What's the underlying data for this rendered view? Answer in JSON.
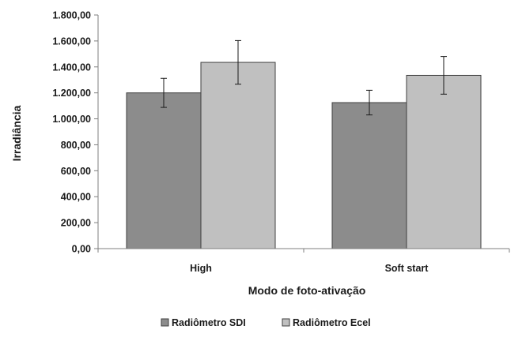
{
  "chart_data": {
    "type": "bar",
    "title": "",
    "xlabel": "Modo de foto-ativação",
    "ylabel": "Irradiância",
    "categories": [
      "High",
      "Soft start"
    ],
    "ylim": [
      0,
      1800
    ],
    "yticks": [
      0,
      200,
      400,
      600,
      800,
      1000,
      1200,
      1400,
      1600,
      1800
    ],
    "ytick_labels": [
      "0,00",
      "200,00",
      "400,00",
      "600,00",
      "800,00",
      "1.000,00",
      "1.200,00",
      "1.400,00",
      "1.600,00",
      "1.800,00"
    ],
    "grid": false,
    "legend_position": "bottom",
    "series": [
      {
        "name": "Radiômetro SDI",
        "values": [
          1200,
          1125
        ],
        "errors": [
          112,
          95
        ],
        "color": "#8c8c8c"
      },
      {
        "name": "Radiômetro Ecel",
        "values": [
          1435,
          1335
        ],
        "errors": [
          168,
          145
        ],
        "color": "#c0c0c0"
      }
    ]
  }
}
